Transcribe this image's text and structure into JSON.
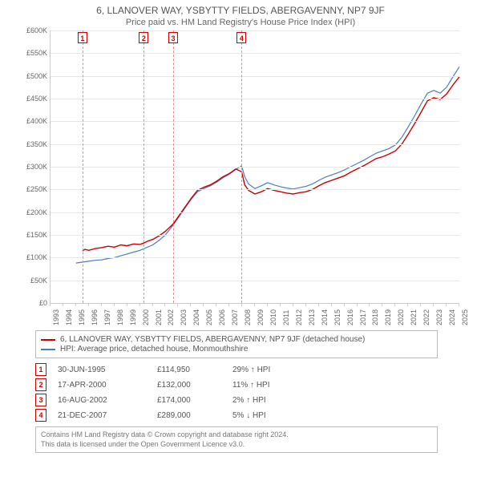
{
  "title": "6, LLANOVER WAY, YSBYTTY FIELDS, ABERGAVENNY, NP7 9JF",
  "subtitle": "Price paid vs. HM Land Registry's House Price Index (HPI)",
  "chart": {
    "type": "line",
    "x_years": [
      1993,
      1994,
      1995,
      1996,
      1997,
      1998,
      1999,
      2000,
      2001,
      2002,
      2003,
      2004,
      2005,
      2006,
      2007,
      2008,
      2009,
      2010,
      2011,
      2012,
      2013,
      2014,
      2015,
      2016,
      2017,
      2018,
      2019,
      2020,
      2021,
      2022,
      2023,
      2024,
      2025
    ],
    "ylim": [
      0,
      600000
    ],
    "ytick_step": 50000,
    "yticks": [
      "£0",
      "£50K",
      "£100K",
      "£150K",
      "£200K",
      "£250K",
      "£300K",
      "£350K",
      "£400K",
      "£450K",
      "£500K",
      "£550K",
      "£600K"
    ],
    "grid_color": "#e8e8e8",
    "axis_color": "#cccccc",
    "vline_color": "#e78b8b",
    "background_color": "#ffffff",
    "label_fontsize": 9,
    "title_fontsize": 12,
    "series": {
      "price_paid": {
        "label": "6, LLANOVER WAY, YSBYTTY FIELDS, ABERGAVENNY, NP7 9JF (detached house)",
        "color": "#cc0000",
        "line_width": 1.4,
        "points": [
          [
            1995.5,
            114950
          ],
          [
            1995.7,
            118000
          ],
          [
            1996.0,
            116000
          ],
          [
            1996.5,
            120000
          ],
          [
            1997.0,
            122000
          ],
          [
            1997.5,
            125000
          ],
          [
            1998.0,
            123000
          ],
          [
            1998.5,
            128000
          ],
          [
            1999.0,
            126000
          ],
          [
            1999.5,
            130000
          ],
          [
            2000.0,
            129000
          ],
          [
            2000.3,
            132000
          ],
          [
            2000.6,
            136000
          ],
          [
            2001.0,
            140000
          ],
          [
            2001.5,
            148000
          ],
          [
            2002.0,
            158000
          ],
          [
            2002.6,
            174000
          ],
          [
            2003.0,
            190000
          ],
          [
            2003.5,
            210000
          ],
          [
            2004.0,
            230000
          ],
          [
            2004.5,
            248000
          ],
          [
            2005.0,
            255000
          ],
          [
            2005.5,
            260000
          ],
          [
            2006.0,
            268000
          ],
          [
            2006.5,
            278000
          ],
          [
            2007.0,
            285000
          ],
          [
            2007.5,
            295000
          ],
          [
            2007.96,
            289000
          ],
          [
            2008.2,
            260000
          ],
          [
            2008.5,
            248000
          ],
          [
            2009.0,
            240000
          ],
          [
            2009.5,
            245000
          ],
          [
            2010.0,
            252000
          ],
          [
            2010.5,
            248000
          ],
          [
            2011.0,
            245000
          ],
          [
            2011.5,
            242000
          ],
          [
            2012.0,
            240000
          ],
          [
            2012.5,
            243000
          ],
          [
            2013.0,
            245000
          ],
          [
            2013.5,
            250000
          ],
          [
            2014.0,
            258000
          ],
          [
            2014.5,
            265000
          ],
          [
            2015.0,
            270000
          ],
          [
            2015.5,
            275000
          ],
          [
            2016.0,
            280000
          ],
          [
            2016.5,
            288000
          ],
          [
            2017.0,
            295000
          ],
          [
            2017.5,
            302000
          ],
          [
            2018.0,
            310000
          ],
          [
            2018.5,
            318000
          ],
          [
            2019.0,
            322000
          ],
          [
            2019.5,
            328000
          ],
          [
            2020.0,
            335000
          ],
          [
            2020.5,
            350000
          ],
          [
            2021.0,
            372000
          ],
          [
            2021.5,
            395000
          ],
          [
            2022.0,
            420000
          ],
          [
            2022.5,
            445000
          ],
          [
            2023.0,
            452000
          ],
          [
            2023.5,
            448000
          ],
          [
            2024.0,
            460000
          ],
          [
            2024.5,
            480000
          ],
          [
            2025.0,
            498000
          ]
        ]
      },
      "hpi": {
        "label": "HPI: Average price, detached house, Monmouthshire",
        "color": "#4a7ebb",
        "line_width": 1.2,
        "points": [
          [
            1995.0,
            88000
          ],
          [
            1995.5,
            90000
          ],
          [
            1996.0,
            92000
          ],
          [
            1996.5,
            94000
          ],
          [
            1997.0,
            95000
          ],
          [
            1997.5,
            98000
          ],
          [
            1998.0,
            100000
          ],
          [
            1998.5,
            104000
          ],
          [
            1999.0,
            108000
          ],
          [
            1999.5,
            112000
          ],
          [
            2000.0,
            116000
          ],
          [
            2000.5,
            122000
          ],
          [
            2001.0,
            128000
          ],
          [
            2001.5,
            138000
          ],
          [
            2002.0,
            150000
          ],
          [
            2002.5,
            168000
          ],
          [
            2003.0,
            188000
          ],
          [
            2003.5,
            208000
          ],
          [
            2004.0,
            228000
          ],
          [
            2004.5,
            245000
          ],
          [
            2005.0,
            252000
          ],
          [
            2005.5,
            258000
          ],
          [
            2006.0,
            266000
          ],
          [
            2006.5,
            276000
          ],
          [
            2007.0,
            284000
          ],
          [
            2007.5,
            294000
          ],
          [
            2007.96,
            302000
          ],
          [
            2008.2,
            278000
          ],
          [
            2008.5,
            262000
          ],
          [
            2009.0,
            252000
          ],
          [
            2009.5,
            258000
          ],
          [
            2010.0,
            265000
          ],
          [
            2010.5,
            260000
          ],
          [
            2011.0,
            256000
          ],
          [
            2011.5,
            253000
          ],
          [
            2012.0,
            251000
          ],
          [
            2012.5,
            254000
          ],
          [
            2013.0,
            257000
          ],
          [
            2013.5,
            262000
          ],
          [
            2014.0,
            270000
          ],
          [
            2014.5,
            277000
          ],
          [
            2015.0,
            282000
          ],
          [
            2015.5,
            287000
          ],
          [
            2016.0,
            293000
          ],
          [
            2016.5,
            300000
          ],
          [
            2017.0,
            307000
          ],
          [
            2017.5,
            314000
          ],
          [
            2018.0,
            322000
          ],
          [
            2018.5,
            330000
          ],
          [
            2019.0,
            335000
          ],
          [
            2019.5,
            340000
          ],
          [
            2020.0,
            348000
          ],
          [
            2020.5,
            365000
          ],
          [
            2021.0,
            388000
          ],
          [
            2021.5,
            412000
          ],
          [
            2022.0,
            438000
          ],
          [
            2022.5,
            462000
          ],
          [
            2023.0,
            468000
          ],
          [
            2023.5,
            462000
          ],
          [
            2024.0,
            475000
          ],
          [
            2024.5,
            498000
          ],
          [
            2025.0,
            520000
          ]
        ]
      }
    },
    "markers": [
      {
        "n": "1",
        "x": 1995.5
      },
      {
        "n": "2",
        "x": 2000.3
      },
      {
        "n": "3",
        "x": 2002.6
      },
      {
        "n": "4",
        "x": 2007.96
      }
    ]
  },
  "legend": {
    "line1": "6, LLANOVER WAY, YSBYTTY FIELDS, ABERGAVENNY, NP7 9JF (detached house)",
    "line2": "HPI: Average price, detached house, Monmouthshire"
  },
  "sales": [
    {
      "n": "1",
      "date": "30-JUN-1995",
      "price": "£114,950",
      "diff": "29% ↑ HPI"
    },
    {
      "n": "2",
      "date": "17-APR-2000",
      "price": "£132,000",
      "diff": "11% ↑ HPI"
    },
    {
      "n": "3",
      "date": "16-AUG-2002",
      "price": "£174,000",
      "diff": "2% ↑ HPI"
    },
    {
      "n": "4",
      "date": "21-DEC-2007",
      "price": "£289,000",
      "diff": "5% ↓ HPI"
    }
  ],
  "footer": {
    "l1": "Contains HM Land Registry data © Crown copyright and database right 2024.",
    "l2": "This data is licensed under the Open Government Licence v3.0."
  }
}
